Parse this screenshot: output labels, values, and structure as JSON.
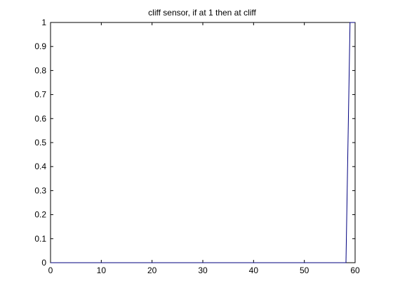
{
  "chart_data": {
    "type": "line",
    "title": "cliff sensor, if at 1 then at cliff",
    "xlabel": "",
    "ylabel": "",
    "xlim": [
      0,
      60
    ],
    "ylim": [
      0,
      1
    ],
    "xticks": [
      0,
      10,
      20,
      30,
      40,
      50,
      60
    ],
    "yticks": [
      0,
      0.1,
      0.2,
      0.3,
      0.4,
      0.5,
      0.6,
      0.7,
      0.8,
      0.9,
      1
    ],
    "xtick_labels": [
      "0",
      "10",
      "20",
      "30",
      "40",
      "50",
      "60"
    ],
    "ytick_labels": [
      "0",
      "0.1",
      "0.2",
      "0.3",
      "0.4",
      "0.5",
      "0.6",
      "0.7",
      "0.8",
      "0.9",
      "1"
    ],
    "grid": false,
    "legend": false,
    "series": [
      {
        "color": "#00007f",
        "x": [
          0,
          58.2,
          59.0,
          60
        ],
        "y": [
          0,
          0,
          1,
          1
        ]
      }
    ]
  }
}
